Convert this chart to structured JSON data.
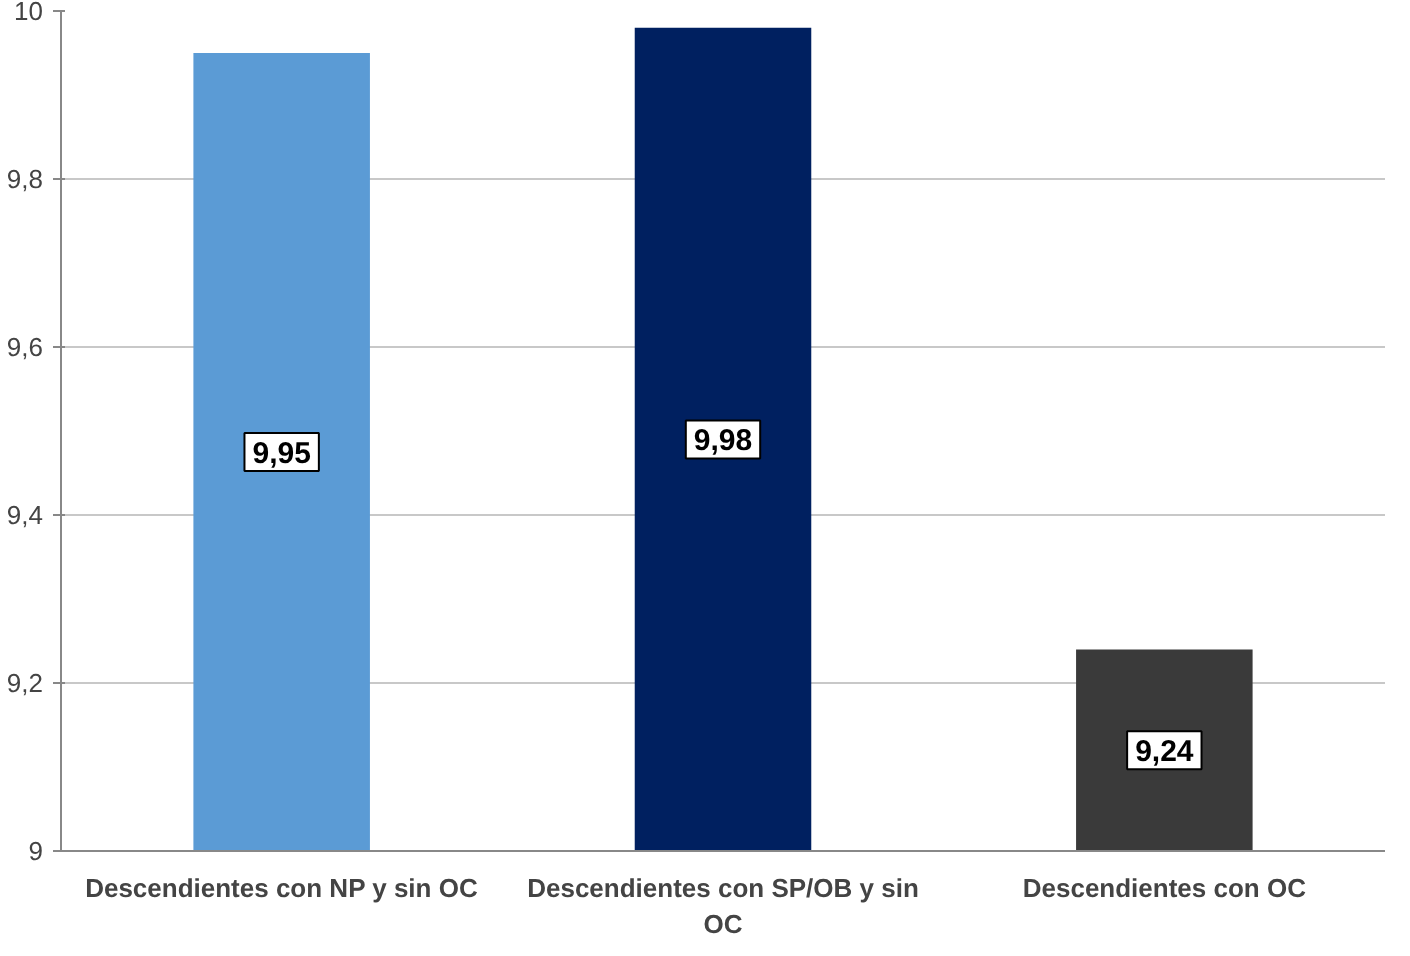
{
  "chart_data": {
    "type": "bar",
    "categories": [
      "Descendientes con NP y sin OC",
      "Descendientes con SP/OB y sin OC",
      "Descendientes con OC"
    ],
    "values": [
      9.95,
      9.98,
      9.24
    ],
    "colors": [
      "#5b9bd5",
      "#002060",
      "#3a3a3a"
    ],
    "ylim": [
      9,
      10
    ],
    "yticks": [
      9,
      {
        "value": 9.2,
        "label": "9,2"
      },
      {
        "value": 9.4,
        "label": "9,4"
      },
      {
        "value": 9.6,
        "label": "9,6"
      },
      {
        "value": 9.8,
        "label": "9,8"
      },
      10
    ],
    "value_labels": [
      "9,95",
      "9,98",
      "9,24"
    ],
    "grid": "y"
  }
}
